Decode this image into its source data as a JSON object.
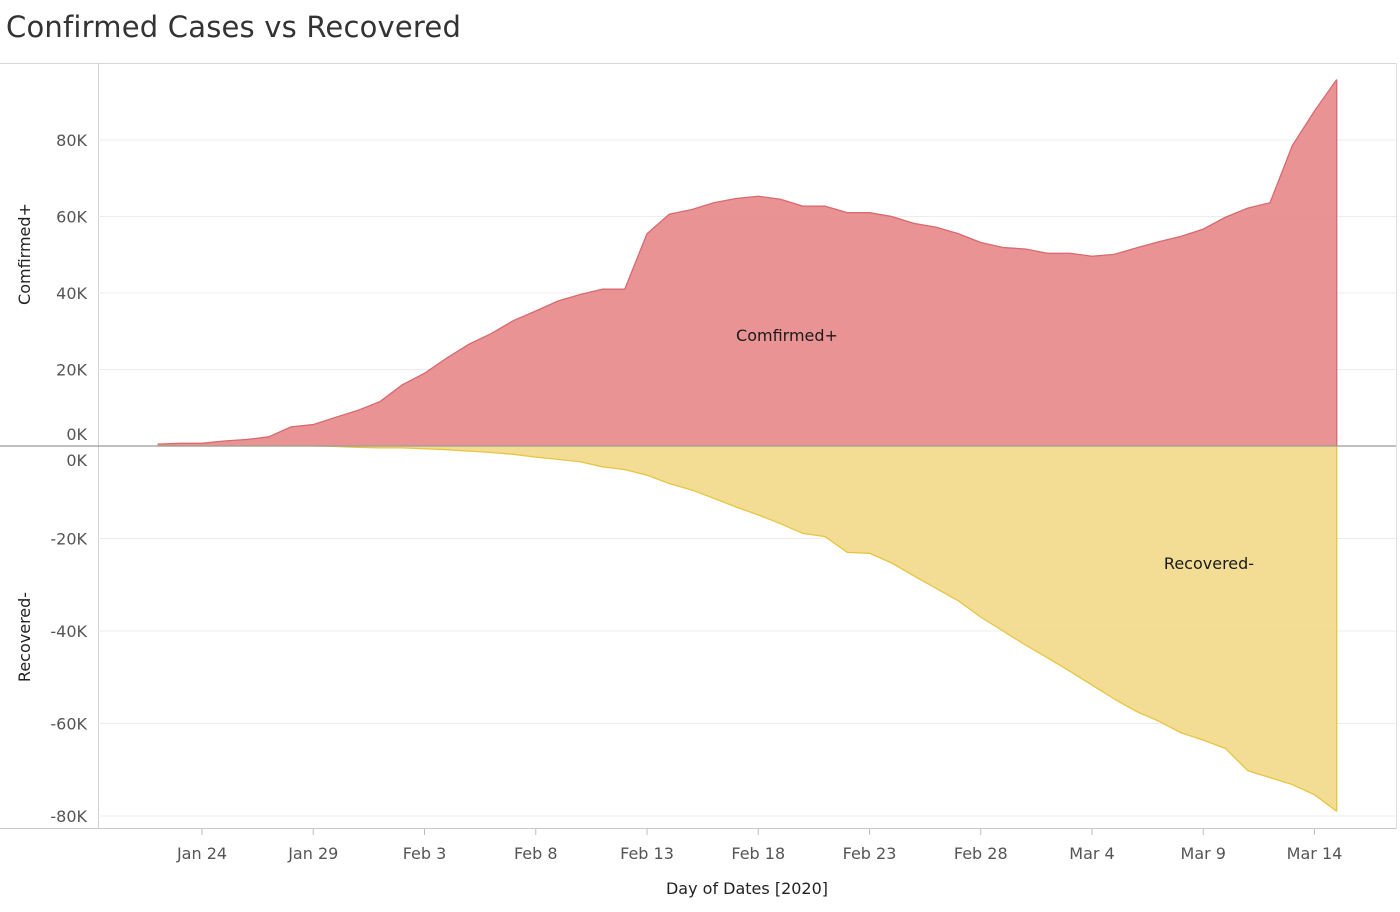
{
  "chart_data": {
    "type": "area",
    "title": "Confirmed Cases vs Recovered",
    "xlabel": "Day of Dates [2020]",
    "x_start": "2020-01-22",
    "x_ticks": [
      "Jan 24",
      "Jan 29",
      "Feb 3",
      "Feb 8",
      "Feb 13",
      "Feb 18",
      "Feb 23",
      "Feb 28",
      "Mar 4",
      "Mar 9",
      "Mar 14"
    ],
    "x_tick_dates": [
      "2020-01-24",
      "2020-01-29",
      "2020-02-03",
      "2020-02-08",
      "2020-02-13",
      "2020-02-18",
      "2020-02-23",
      "2020-02-28",
      "2020-03-04",
      "2020-03-09",
      "2020-03-14"
    ],
    "grid": true,
    "panels": [
      {
        "name": "Comfirmed+",
        "ylabel": "Comfirmed+",
        "area_label": "Comfirmed+",
        "color": "#e8878a",
        "line_color": "#d9696e",
        "ylim": [
          0,
          100000
        ],
        "y_ticks": [
          0,
          20000,
          40000,
          60000,
          80000
        ],
        "y_tick_labels": [
          "0K",
          "20K",
          "40K",
          "60K",
          "80K"
        ],
        "values": [
          500,
          700,
          700,
          1300,
          1700,
          2400,
          5000,
          5600,
          7500,
          9300,
          11600,
          16000,
          19000,
          23000,
          26600,
          29400,
          32800,
          35300,
          37900,
          39600,
          41000,
          41000,
          55500,
          60600,
          61800,
          63600,
          64700,
          65300,
          64500,
          62700,
          62700,
          61000,
          61000,
          60000,
          58200,
          57200,
          55500,
          53200,
          51900,
          51500,
          50400,
          50400,
          49600,
          50100,
          51800,
          53400,
          54800,
          56700,
          59800,
          62200,
          63600,
          78500,
          87600,
          95800
        ]
      },
      {
        "name": "Recovered-",
        "ylabel": "Recovered-",
        "area_label": "Recovered-",
        "color": "#f2d98a",
        "line_color": "#e8c540",
        "ylim": [
          -80000,
          0
        ],
        "y_ticks": [
          0,
          -20000,
          -40000,
          -60000,
          -80000
        ],
        "y_tick_labels": [
          "0K",
          "-20K",
          "-40K",
          "-60K",
          "-80K"
        ],
        "values": [
          0,
          0,
          0,
          0,
          0,
          0,
          0,
          0,
          -100,
          -300,
          -400,
          -400,
          -600,
          -800,
          -1100,
          -1400,
          -1800,
          -2400,
          -2900,
          -3400,
          -4500,
          -5100,
          -6300,
          -8100,
          -9500,
          -11300,
          -13200,
          -14900,
          -16800,
          -18900,
          -19600,
          -23000,
          -23200,
          -25300,
          -28100,
          -30800,
          -33500,
          -37000,
          -40000,
          -43000,
          -45800,
          -48700,
          -51700,
          -54700,
          -57400,
          -59500,
          -62000,
          -63600,
          -65400,
          -70200,
          -71700,
          -73200,
          -75400,
          -79000
        ]
      }
    ]
  }
}
